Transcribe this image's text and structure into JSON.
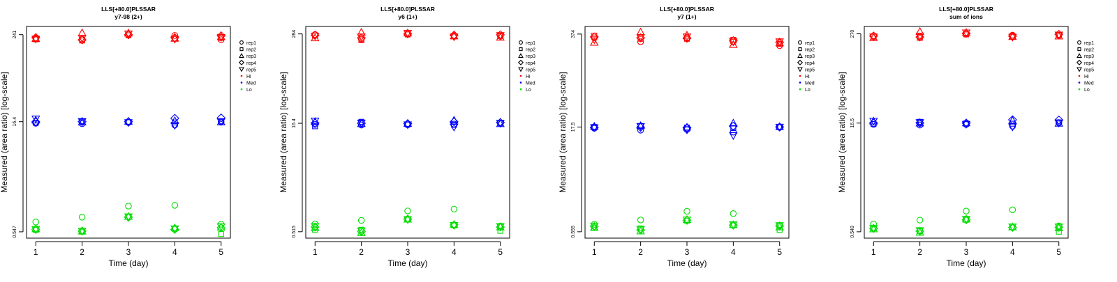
{
  "colors": {
    "Hi": "#ff0000",
    "Med": "#0000ff",
    "Lo": "#00dd00",
    "axis": "#000000"
  },
  "legend": {
    "reps": [
      {
        "label": "rep1",
        "shape": "circle"
      },
      {
        "label": "rep2",
        "shape": "square"
      },
      {
        "label": "rep3",
        "shape": "triangle-up"
      },
      {
        "label": "rep4",
        "shape": "diamond"
      },
      {
        "label": "rep5",
        "shape": "triangle-down"
      }
    ],
    "levels": [
      {
        "label": "Hi",
        "color": "#ff0000"
      },
      {
        "label": "Med",
        "color": "#0000ff"
      },
      {
        "label": "Lo",
        "color": "#00dd00"
      }
    ]
  },
  "chart_data": [
    {
      "type": "scatter",
      "title": "LLS[+80.0]PLSSAR",
      "subtitle": "y7-98 (2+)",
      "xlabel": "Time (day)",
      "ylabel": "Measured (area ratio) [log-scale]",
      "x_ticks": [
        "1",
        "2",
        "3",
        "4",
        "5"
      ],
      "xlim": [
        0.8,
        5.2
      ],
      "y_scale": "log",
      "y_ticks": [
        0.547,
        16.4,
        241
      ],
      "y_tick_labels": [
        "0.547",
        "16.4",
        "241"
      ],
      "ylim": [
        0.45,
        310
      ],
      "series": [
        {
          "level": "Hi",
          "rep": "rep1",
          "values": [
            217,
            210,
            244,
            235,
            206
          ]
        },
        {
          "level": "Hi",
          "rep": "rep2",
          "values": [
            208,
            201,
            236,
            213,
            218
          ]
        },
        {
          "level": "Hi",
          "rep": "rep3",
          "values": [
            214,
            255,
            253,
            215,
            226
          ]
        },
        {
          "level": "Hi",
          "rep": "rep4",
          "values": [
            220,
            205,
            240,
            219,
            233
          ]
        },
        {
          "level": "Hi",
          "rep": "rep5",
          "values": [
            210,
            215,
            247,
            209,
            221
          ]
        },
        {
          "level": "Med",
          "rep": "rep1",
          "values": [
            15.6,
            15.4,
            16.0,
            14.8,
            16.3
          ]
        },
        {
          "level": "Med",
          "rep": "rep2",
          "values": [
            15.9,
            16.6,
            16.2,
            16.0,
            16.6
          ]
        },
        {
          "level": "Med",
          "rep": "rep3",
          "values": [
            17.2,
            16.2,
            16.6,
            16.9,
            16.2
          ]
        },
        {
          "level": "Med",
          "rep": "rep4",
          "values": [
            16.3,
            16.4,
            16.4,
            18.2,
            18.4
          ]
        },
        {
          "level": "Med",
          "rep": "rep5",
          "values": [
            17.8,
            16.5,
            15.9,
            14.6,
            16.4
          ]
        },
        {
          "level": "Lo",
          "rep": "rep1",
          "values": [
            0.74,
            0.86,
            1.21,
            1.24,
            0.69
          ]
        },
        {
          "level": "Lo",
          "rep": "rep2",
          "values": [
            0.58,
            0.55,
            0.87,
            0.6,
            0.51
          ]
        },
        {
          "level": "Lo",
          "rep": "rep3",
          "values": [
            0.6,
            0.56,
            0.88,
            0.62,
            0.63
          ]
        },
        {
          "level": "Lo",
          "rep": "rep4",
          "values": [
            0.59,
            0.56,
            0.86,
            0.59,
            0.62
          ]
        },
        {
          "level": "Lo",
          "rep": "rep5",
          "values": [
            0.59,
            0.56,
            0.87,
            0.6,
            0.64
          ]
        }
      ]
    },
    {
      "type": "scatter",
      "title": "LLS[+80.0]PLSSAR",
      "subtitle": "y6 (1+)",
      "xlabel": "Time (day)",
      "ylabel": "Measured (area ratio) [log-scale]",
      "x_ticks": [
        "1",
        "2",
        "3",
        "4",
        "5"
      ],
      "xlim": [
        0.8,
        5.2
      ],
      "y_scale": "log",
      "y_ticks": [
        0.515,
        16.4,
        284
      ],
      "y_tick_labels": [
        "0.515",
        "16.4",
        "284"
      ],
      "ylim": [
        0.42,
        360
      ],
      "series": [
        {
          "level": "Hi",
          "rep": "rep1",
          "values": [
            278,
            240,
            286,
            270,
            262
          ]
        },
        {
          "level": "Hi",
          "rep": "rep2",
          "values": [
            270,
            232,
            279,
            262,
            268
          ]
        },
        {
          "level": "Hi",
          "rep": "rep3",
          "values": [
            250,
            300,
            292,
            266,
            255
          ]
        },
        {
          "level": "Hi",
          "rep": "rep4",
          "values": [
            272,
            250,
            284,
            273,
            276
          ]
        },
        {
          "level": "Hi",
          "rep": "rep5",
          "values": [
            265,
            258,
            290,
            258,
            270
          ]
        },
        {
          "level": "Med",
          "rep": "rep1",
          "values": [
            15.8,
            15.5,
            15.6,
            16.0,
            16.4
          ]
        },
        {
          "level": "Med",
          "rep": "rep2",
          "values": [
            14.9,
            17.2,
            15.8,
            15.6,
            16.6
          ]
        },
        {
          "level": "Med",
          "rep": "rep3",
          "values": [
            17.3,
            16.2,
            16.3,
            18.1,
            16.2
          ]
        },
        {
          "level": "Med",
          "rep": "rep4",
          "values": [
            16.5,
            16.4,
            16.2,
            17.2,
            16.8
          ]
        },
        {
          "level": "Med",
          "rep": "rep5",
          "values": [
            17.6,
            16.5,
            15.6,
            14.5,
            16.4
          ]
        },
        {
          "level": "Lo",
          "rep": "rep1",
          "values": [
            0.66,
            0.74,
            1.0,
            1.06,
            0.62
          ]
        },
        {
          "level": "Lo",
          "rep": "rep2",
          "values": [
            0.55,
            0.55,
            0.76,
            0.63,
            0.53
          ]
        },
        {
          "level": "Lo",
          "rep": "rep3",
          "values": [
            0.59,
            0.5,
            0.77,
            0.65,
            0.6
          ]
        },
        {
          "level": "Lo",
          "rep": "rep4",
          "values": [
            0.6,
            0.52,
            0.77,
            0.64,
            0.6
          ]
        },
        {
          "level": "Lo",
          "rep": "rep5",
          "values": [
            0.61,
            0.53,
            0.76,
            0.63,
            0.61
          ]
        }
      ]
    },
    {
      "type": "scatter",
      "title": "LLS[+80.0]PLSSAR",
      "subtitle": "y7 (1+)",
      "xlabel": "Time (day)",
      "ylabel": "Measured (area ratio) [log-scale]",
      "x_ticks": [
        "1",
        "2",
        "3",
        "4",
        "5"
      ],
      "xlim": [
        0.8,
        5.2
      ],
      "y_scale": "log",
      "y_ticks": [
        0.555,
        17.5,
        374
      ],
      "y_tick_labels": [
        "0.555",
        "17.5",
        "374"
      ],
      "ylim": [
        0.45,
        480
      ],
      "series": [
        {
          "level": "Hi",
          "rep": "rep1",
          "values": [
            330,
            290,
            330,
            287,
            255
          ]
        },
        {
          "level": "Hi",
          "rep": "rep2",
          "values": [
            355,
            320,
            320,
            310,
            270
          ]
        },
        {
          "level": "Hi",
          "rep": "rep3",
          "values": [
            285,
            400,
            360,
            265,
            280
          ]
        },
        {
          "level": "Hi",
          "rep": "rep4",
          "values": [
            340,
            330,
            325,
            300,
            285
          ]
        },
        {
          "level": "Hi",
          "rep": "rep5",
          "values": [
            310,
            335,
            340,
            290,
            290
          ]
        },
        {
          "level": "Med",
          "rep": "rep1",
          "values": [
            16.8,
            15.8,
            16.1,
            14.8,
            17.3
          ]
        },
        {
          "level": "Med",
          "rep": "rep2",
          "values": [
            17.5,
            18.1,
            17.2,
            16.9,
            17.6
          ]
        },
        {
          "level": "Med",
          "rep": "rep3",
          "values": [
            17.9,
            18.3,
            17.4,
            19.9,
            17.7
          ]
        },
        {
          "level": "Med",
          "rep": "rep4",
          "values": [
            17.2,
            17.3,
            17.0,
            18.0,
            17.5
          ]
        },
        {
          "level": "Med",
          "rep": "rep5",
          "values": [
            17.1,
            17.8,
            15.9,
            13.2,
            17.4
          ]
        },
        {
          "level": "Lo",
          "rep": "rep1",
          "values": [
            0.71,
            0.82,
            1.09,
            1.01,
            0.69
          ]
        },
        {
          "level": "Lo",
          "rep": "rep2",
          "values": [
            0.63,
            0.62,
            0.8,
            0.69,
            0.59
          ]
        },
        {
          "level": "Lo",
          "rep": "rep3",
          "values": [
            0.64,
            0.57,
            0.83,
            0.7,
            0.65
          ]
        },
        {
          "level": "Lo",
          "rep": "rep4",
          "values": [
            0.66,
            0.59,
            0.81,
            0.69,
            0.67
          ]
        },
        {
          "level": "Lo",
          "rep": "rep5",
          "values": [
            0.66,
            0.6,
            0.82,
            0.7,
            0.68
          ]
        }
      ]
    },
    {
      "type": "scatter",
      "title": "LLS[+80.0]PLSSAR",
      "subtitle": "sum of ions",
      "xlabel": "Time (day)",
      "ylabel": "Measured (area ratio) [log-scale]",
      "x_ticks": [
        "1",
        "2",
        "3",
        "4",
        "5"
      ],
      "xlim": [
        0.8,
        5.2
      ],
      "y_scale": "log",
      "y_ticks": [
        0.549,
        16.5,
        270
      ],
      "y_tick_labels": [
        "0.549",
        "16.5",
        "270"
      ],
      "ylim": [
        0.45,
        340
      ],
      "series": [
        {
          "level": "Hi",
          "rep": "rep1",
          "values": [
            254,
            250,
            270,
            259,
            257
          ]
        },
        {
          "level": "Hi",
          "rep": "rep2",
          "values": [
            247,
            238,
            265,
            247,
            262
          ]
        },
        {
          "level": "Hi",
          "rep": "rep3",
          "values": [
            240,
            290,
            282,
            248,
            252
          ]
        },
        {
          "level": "Hi",
          "rep": "rep4",
          "values": [
            252,
            244,
            274,
            251,
            266
          ]
        },
        {
          "level": "Hi",
          "rep": "rep5",
          "values": [
            245,
            252,
            278,
            243,
            260
          ]
        },
        {
          "level": "Med",
          "rep": "rep1",
          "values": [
            15.9,
            15.5,
            15.8,
            15.0,
            16.6
          ]
        },
        {
          "level": "Med",
          "rep": "rep2",
          "values": [
            16.0,
            17.2,
            16.3,
            16.2,
            16.9
          ]
        },
        {
          "level": "Med",
          "rep": "rep3",
          "values": [
            17.6,
            16.5,
            16.6,
            17.9,
            16.4
          ]
        },
        {
          "level": "Med",
          "rep": "rep4",
          "values": [
            16.5,
            16.6,
            16.5,
            18.3,
            18.2
          ]
        },
        {
          "level": "Med",
          "rep": "rep5",
          "values": [
            17.5,
            16.8,
            15.9,
            14.6,
            16.5
          ]
        },
        {
          "level": "Lo",
          "rep": "rep1",
          "values": [
            0.7,
            0.79,
            1.05,
            1.09,
            0.66
          ]
        },
        {
          "level": "Lo",
          "rep": "rep2",
          "values": [
            0.61,
            0.56,
            0.8,
            0.63,
            0.55
          ]
        },
        {
          "level": "Lo",
          "rep": "rep3",
          "values": [
            0.6,
            0.54,
            0.82,
            0.64,
            0.62
          ]
        },
        {
          "level": "Lo",
          "rep": "rep4",
          "values": [
            0.61,
            0.56,
            0.8,
            0.63,
            0.63
          ]
        },
        {
          "level": "Lo",
          "rep": "rep5",
          "values": [
            0.61,
            0.57,
            0.81,
            0.64,
            0.64
          ]
        }
      ]
    }
  ]
}
